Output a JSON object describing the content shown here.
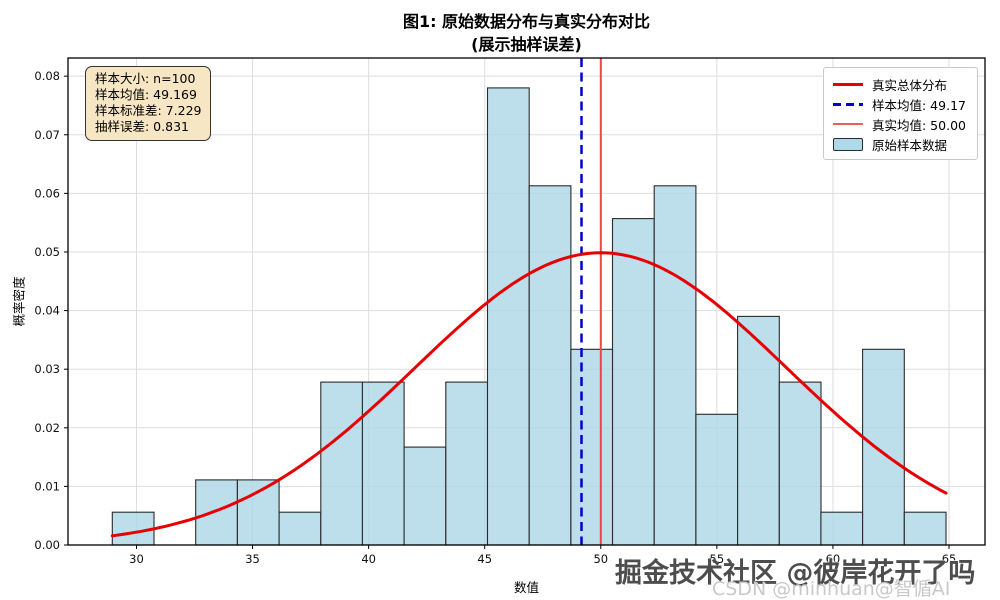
{
  "title": {
    "line1": "图1: 原始数据分布与真实分布对比",
    "line2": "(展示抽样误差)"
  },
  "axes": {
    "xlabel": "数值",
    "ylabel": "概率密度",
    "xlim": [
      27.05,
      66.55
    ],
    "ylim": [
      0,
      0.0831
    ],
    "x_ticks": [
      30,
      35,
      40,
      45,
      50,
      55,
      60,
      65
    ],
    "x_tick_labels": [
      "30",
      "35",
      "40",
      "45",
      "50",
      "55",
      "60",
      "65"
    ],
    "y_ticks": [
      0,
      0.01,
      0.02,
      0.03,
      0.04,
      0.05,
      0.06,
      0.07,
      0.08
    ],
    "y_tick_labels": [
      "0.00",
      "0.01",
      "0.02",
      "0.03",
      "0.04",
      "0.05",
      "0.06",
      "0.07",
      "0.08"
    ],
    "grid": true,
    "grid_color": "#dedede"
  },
  "stats_box": {
    "lines": [
      "样本大小: n=100",
      "样本均值: 49.169",
      "样本标准差: 7.229",
      "抽样误差: 0.831"
    ],
    "bg_color": "#f7e6c3"
  },
  "legend": {
    "items": [
      {
        "label": "真实总体分布",
        "marker": "line",
        "color": "#e60000",
        "thickness": 3
      },
      {
        "label": "样本均值: 49.17",
        "marker": "dashed-line",
        "color": "#0000cd",
        "thickness": 3
      },
      {
        "label": "真实均值: 50.00",
        "marker": "line",
        "color": "#ec5b5b",
        "thickness": 2
      },
      {
        "label": "原始样本数据",
        "marker": "patch",
        "color": "#aed9e9"
      }
    ]
  },
  "chart_data": {
    "type": "histogram",
    "title": "图1: 原始数据分布与真实分布对比 (展示抽样误差)",
    "xlabel": "数值",
    "ylabel": "概率密度",
    "histogram": {
      "n": 100,
      "bin_start": 28.96,
      "bin_width": 1.7955,
      "counts": [
        1,
        0,
        2,
        2,
        1,
        5,
        5,
        3,
        5,
        14,
        11,
        6,
        10,
        11,
        4,
        7,
        5,
        1,
        6,
        1
      ],
      "densities": [
        0.0056,
        0,
        0.0111,
        0.0111,
        0.0056,
        0.0278,
        0.0278,
        0.0167,
        0.0278,
        0.078,
        0.0613,
        0.0334,
        0.0557,
        0.0613,
        0.0223,
        0.039,
        0.0278,
        0.0056,
        0.0334,
        0.0056
      ],
      "fill_color": "#add8e6",
      "edge_color": "#2b2b2b"
    },
    "curve": {
      "name": "true-distribution",
      "shape": "normal_pdf",
      "mean": 50,
      "std": 8,
      "peak_density": 0.0499,
      "x_range": [
        28.96,
        64.87
      ],
      "color": "#e60000",
      "width": 3
    },
    "vlines": [
      {
        "name": "sample-mean",
        "x": 49.169,
        "style": "dashed",
        "color": "#0000cd",
        "width": 2.5
      },
      {
        "name": "true-mean",
        "x": 50.0,
        "style": "solid",
        "color": "#ee4545",
        "width": 2
      }
    ],
    "sample_stats": {
      "n": 100,
      "mean": 49.169,
      "std": 7.229,
      "sampling_error": 0.831,
      "true_mean": 50.0
    }
  },
  "watermarks": [
    {
      "text": "掘金技术社区 @彼岸花开了吗",
      "color": "#4d4d4d"
    },
    {
      "text": "CSDN @minhuan@智偱AI",
      "color": "#c9c9c9"
    }
  ]
}
